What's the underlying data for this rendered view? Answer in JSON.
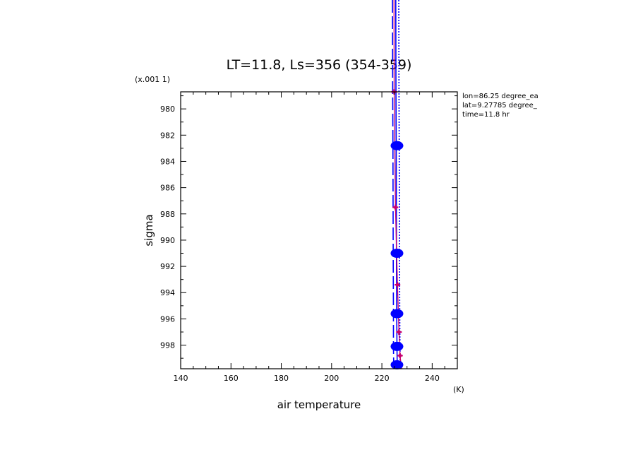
{
  "chart_data": {
    "type": "line",
    "title": "LT=11.8, Ls=356 (354-359)",
    "xlabel": "air temperature",
    "xunit": "(K)",
    "ylabel": "sigma",
    "yscale_label": "(x.001 1)",
    "xlim": [
      140,
      250
    ],
    "ylim": [
      999.8,
      978.7
    ],
    "y_inverted": true,
    "x_ticks": [
      140,
      160,
      180,
      200,
      220,
      240
    ],
    "y_ticks": [
      980,
      982,
      984,
      986,
      988,
      990,
      992,
      994,
      996,
      998
    ],
    "y_tick_labels": [
      "980",
      "982",
      "984",
      "986",
      "988",
      "990",
      "992",
      "994",
      "996",
      "998"
    ],
    "annotations": [
      "lon=86.25 degree_ea",
      "lat=9.27785 degree_",
      "time=11.8 hr"
    ],
    "grid": false,
    "legend": "none",
    "series": [
      {
        "style": "long-dash",
        "color": "#0000ff",
        "points": [
          [
            224.3,
            978.7
          ],
          [
            224.4,
            982.8
          ],
          [
            224.5,
            991.0
          ],
          [
            224.6,
            995.6
          ],
          [
            224.6,
            998.1
          ],
          [
            224.7,
            999.5
          ]
        ]
      },
      {
        "style": "solid",
        "color": "#0000ff",
        "points": [
          [
            225.6,
            978.7
          ],
          [
            225.7,
            982.8
          ],
          [
            225.8,
            991.0
          ],
          [
            225.9,
            995.6
          ],
          [
            226.0,
            998.1
          ],
          [
            226.1,
            999.5
          ]
        ]
      },
      {
        "style": "dotted",
        "color": "#0000ff",
        "points": [
          [
            226.8,
            978.7
          ],
          [
            226.9,
            982.8
          ],
          [
            227.0,
            991.0
          ],
          [
            227.1,
            995.6
          ],
          [
            227.2,
            998.1
          ],
          [
            227.3,
            999.5
          ]
        ]
      },
      {
        "style": "solid",
        "color": "#c8006e",
        "points": [
          [
            224.9,
            978.7
          ],
          [
            225.4,
            987.5
          ],
          [
            226.2,
            993.4
          ],
          [
            226.8,
            997.0
          ],
          [
            227.2,
            998.8
          ],
          [
            227.9,
            999.8
          ]
        ]
      }
    ],
    "markers_blue": {
      "color": "#0000ff",
      "points": [
        [
          226.0,
          982.8
        ],
        [
          226.0,
          991.0
        ],
        [
          226.0,
          995.6
        ],
        [
          226.0,
          998.1
        ],
        [
          226.0,
          999.5
        ]
      ]
    },
    "markers_magenta": {
      "color": "#c8006e",
      "points": [
        [
          224.9,
          978.7
        ],
        [
          225.4,
          987.5
        ],
        [
          226.2,
          993.4
        ],
        [
          226.8,
          997.0
        ],
        [
          227.2,
          998.8
        ]
      ]
    }
  }
}
